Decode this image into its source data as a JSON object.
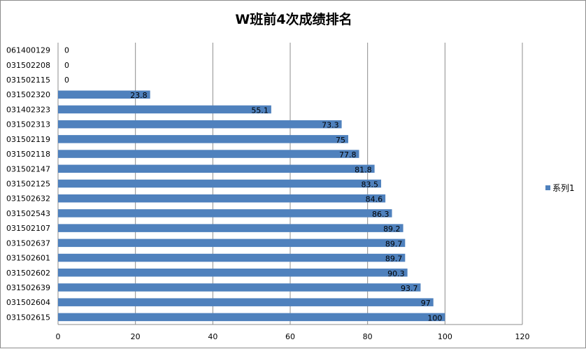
{
  "chart_data": {
    "type": "bar",
    "orientation": "horizontal",
    "title": "W班前4次成绩排名",
    "categories": [
      "061400129",
      "031502208",
      "031502115",
      "031502320",
      "031402323",
      "031502313",
      "031502119",
      "031502118",
      "031502147",
      "031502125",
      "031502632",
      "031502543",
      "031502107",
      "031502637",
      "031502601",
      "031502602",
      "031502639",
      "031502604",
      "031502615"
    ],
    "series": [
      {
        "name": "系列1",
        "color": "#4F81BD",
        "values": [
          0,
          0,
          0,
          23.8,
          55.1,
          73.3,
          75,
          77.8,
          81.8,
          83.5,
          84.6,
          86.3,
          89.2,
          89.7,
          89.7,
          90.3,
          93.7,
          97,
          100
        ],
        "labels": [
          "0",
          "0",
          "0",
          "23.8",
          "55.1",
          "73.3",
          "75",
          "77.8",
          "81.8",
          "83.5",
          "84.6",
          "86.3",
          "89.2",
          "89.7",
          "89.7",
          "90.3",
          "93.7",
          "97",
          "100"
        ]
      }
    ],
    "xlim": [
      0,
      120
    ],
    "xticks": [
      "0",
      "20",
      "40",
      "60",
      "80",
      "100",
      "120"
    ],
    "grid": true,
    "legend_position": "right",
    "colors": {
      "bar": "#4F81BD",
      "grid": "#8c8c8c",
      "axis": "#8c8c8c"
    }
  }
}
